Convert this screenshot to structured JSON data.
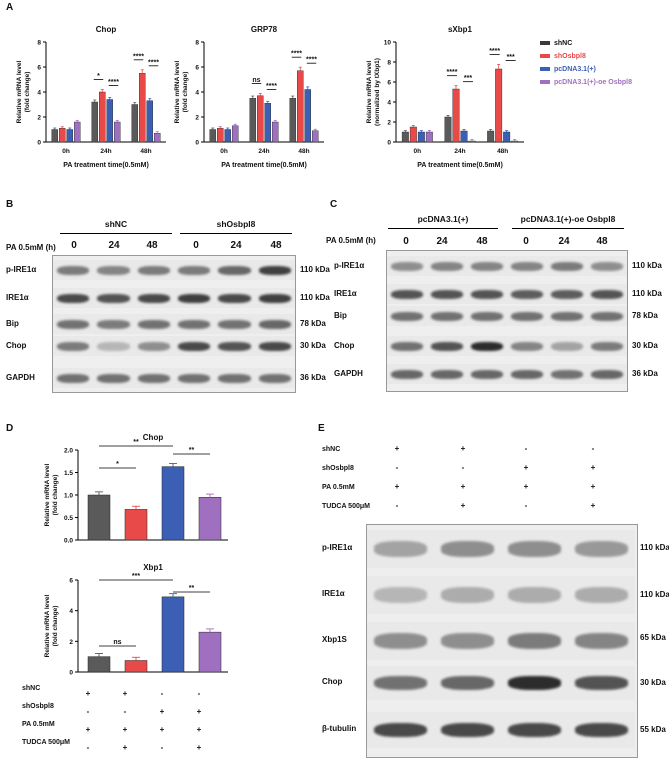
{
  "panels": {
    "A": "A",
    "B": "B",
    "C": "C",
    "D": "D",
    "E": "E"
  },
  "colors": {
    "shNC": "#5a5a5a",
    "shOsbpl8": "#e84a4a",
    "pcDNA": "#3a5fb5",
    "oe": "#a070c0"
  },
  "legend": {
    "items": [
      {
        "label": "shNC",
        "color": "#3a3a3a"
      },
      {
        "label": "shOsbpl8",
        "color": "#e84a4a",
        "text_color": "#e84a4a"
      },
      {
        "label": "pcDNA3.1(+)",
        "color": "#3a5fb5",
        "text_color": "#3a5fb5"
      },
      {
        "label": "pcDNA3.1(+)-oe Osbpl8",
        "color": "#a070c0",
        "text_color": "#a070c0"
      }
    ]
  },
  "chart_data": [
    {
      "type": "bar",
      "title": "Chop",
      "xlabel": "PA treatment time(0.5mM)",
      "ylabel": "Relative mRNA level (fold change)",
      "ylim": [
        0,
        8
      ],
      "yticks": [
        "0",
        "2",
        "4",
        "6",
        "8"
      ],
      "categories": [
        "0h",
        "24h",
        "48h"
      ],
      "series": [
        {
          "name": "shNC",
          "values": [
            1.0,
            3.2,
            3.0
          ]
        },
        {
          "name": "shOsbpl8",
          "values": [
            1.1,
            4.0,
            5.5
          ]
        },
        {
          "name": "pcDNA3.1(+)",
          "values": [
            1.0,
            3.4,
            3.3
          ]
        },
        {
          "name": "pcDNA3.1(+)-oe Osbpl8",
          "values": [
            1.6,
            1.6,
            0.7
          ]
        }
      ],
      "sig": [
        {
          "text": "*"
        },
        {
          "text": "****"
        },
        {
          "text": "****"
        },
        {
          "text": "****"
        }
      ]
    },
    {
      "type": "bar",
      "title": "GRP78",
      "xlabel": "PA treatment time(0.5mM)",
      "ylabel": "Relative mRNA level (fold change)",
      "ylim": [
        0,
        8
      ],
      "yticks": [
        "0",
        "2",
        "4",
        "6",
        "8"
      ],
      "categories": [
        "0h",
        "24h",
        "48h"
      ],
      "series": [
        {
          "name": "shNC",
          "values": [
            1.0,
            3.5,
            3.5
          ]
        },
        {
          "name": "shOsbpl8",
          "values": [
            1.1,
            3.7,
            5.7
          ]
        },
        {
          "name": "pcDNA3.1(+)",
          "values": [
            1.0,
            3.1,
            4.2
          ]
        },
        {
          "name": "pcDNA3.1(+)-oe Osbpl8",
          "values": [
            1.3,
            1.6,
            0.9
          ]
        }
      ],
      "sig": [
        {
          "text": "ns"
        },
        {
          "text": "****"
        },
        {
          "text": "****"
        },
        {
          "text": "****"
        }
      ]
    },
    {
      "type": "bar",
      "title": "sXbp1",
      "xlabel": "PA treatment time(0.5mM)",
      "ylabel": "Relative mRNA level (normalized by tXbp1)",
      "ylim": [
        0,
        10
      ],
      "yticks": [
        "0",
        "2",
        "4",
        "6",
        "8",
        "10"
      ],
      "categories": [
        "0h",
        "24h",
        "48h"
      ],
      "series": [
        {
          "name": "shNC",
          "values": [
            1.0,
            2.5,
            1.1
          ]
        },
        {
          "name": "shOsbpl8",
          "values": [
            1.5,
            5.3,
            7.3
          ]
        },
        {
          "name": "pcDNA3.1(+)",
          "values": [
            1.0,
            1.1,
            1.0
          ]
        },
        {
          "name": "pcDNA3.1(+)-oe Osbpl8",
          "values": [
            1.0,
            0.1,
            0.1
          ]
        }
      ],
      "sig": [
        {
          "text": "****"
        },
        {
          "text": "***"
        },
        {
          "text": "****"
        },
        {
          "text": "***"
        }
      ]
    },
    {
      "type": "bar",
      "title": "Chop",
      "ylabel": "Relative mRNA level (fold change)",
      "ylim": [
        0,
        2.0
      ],
      "yticks": [
        "0.0",
        "0.5",
        "1.0",
        "1.5",
        "2.0"
      ],
      "values": [
        1.0,
        0.68,
        1.63,
        0.95
      ],
      "sig": [
        {
          "text": "**"
        },
        {
          "text": "*"
        },
        {
          "text": "**"
        }
      ]
    },
    {
      "type": "bar",
      "title": "Xbp1",
      "ylabel": "Relative mRNA level (fold change)",
      "ylim": [
        0,
        6
      ],
      "yticks": [
        "0",
        "2",
        "4",
        "6"
      ],
      "values": [
        1.0,
        0.75,
        4.9,
        2.6
      ],
      "sig": [
        {
          "text": "***"
        },
        {
          "text": "ns"
        },
        {
          "text": "**"
        }
      ]
    }
  ],
  "blotB": {
    "group1": "shNC",
    "group2": "shOsbpl8",
    "treat_label": "PA 0.5mM (h)",
    "lanes": [
      "0",
      "24",
      "48",
      "0",
      "24",
      "48"
    ],
    "rows": [
      {
        "label": "p-IRE1α",
        "kda": "110 kDa"
      },
      {
        "label": "IRE1α",
        "kda": "110 kDa"
      },
      {
        "label": "Bip",
        "kda": "78 kDa"
      },
      {
        "label": "Chop",
        "kda": "30 kDa"
      },
      {
        "label": "GAPDH",
        "kda": "36 kDa"
      }
    ]
  },
  "blotC": {
    "group1": "pcDNA3.1(+)",
    "group2": "pcDNA3.1(+)-oe Osbpl8",
    "treat_label": "PA 0.5mM (h)",
    "lanes": [
      "0",
      "24",
      "48",
      "0",
      "24",
      "48"
    ],
    "rows": [
      {
        "label": "p-IRE1α",
        "kda": "110 kDa"
      },
      {
        "label": "IRE1α",
        "kda": "110 kDa"
      },
      {
        "label": "Bip",
        "kda": "78 kDa"
      },
      {
        "label": "Chop",
        "kda": "30 kDa"
      },
      {
        "label": "GAPDH",
        "kda": "36 kDa"
      }
    ]
  },
  "tableD": {
    "rows": [
      {
        "label": "shNC",
        "marks": [
          "+",
          "+",
          "-",
          "-"
        ]
      },
      {
        "label": "shOsbpl8",
        "marks": [
          "-",
          "-",
          "+",
          "+"
        ]
      },
      {
        "label": "PA 0.5mM",
        "marks": [
          "+",
          "+",
          "+",
          "+"
        ]
      },
      {
        "label": "TUDCA 500μM",
        "marks": [
          "-",
          "+",
          "-",
          "+"
        ]
      }
    ]
  },
  "blotE": {
    "conditions": [
      {
        "label": "shNC",
        "marks": [
          "+",
          "+",
          "-",
          "-"
        ]
      },
      {
        "label": "shOsbpl8",
        "marks": [
          "-",
          "-",
          "+",
          "+"
        ]
      },
      {
        "label": "PA 0.5mM",
        "marks": [
          "+",
          "+",
          "+",
          "+"
        ]
      },
      {
        "label": "TUDCA 500μM",
        "marks": [
          "-",
          "+",
          "-",
          "+"
        ]
      }
    ],
    "rows": [
      {
        "label": "p-IRE1α",
        "kda": "110 kDa"
      },
      {
        "label": "IRE1α",
        "kda": "110 kDa"
      },
      {
        "label": "Xbp1S",
        "kda": "65 kDa"
      },
      {
        "label": "Chop",
        "kda": "30 kDa"
      },
      {
        "label": "β-tubulin",
        "kda": "55 kDa"
      }
    ]
  }
}
